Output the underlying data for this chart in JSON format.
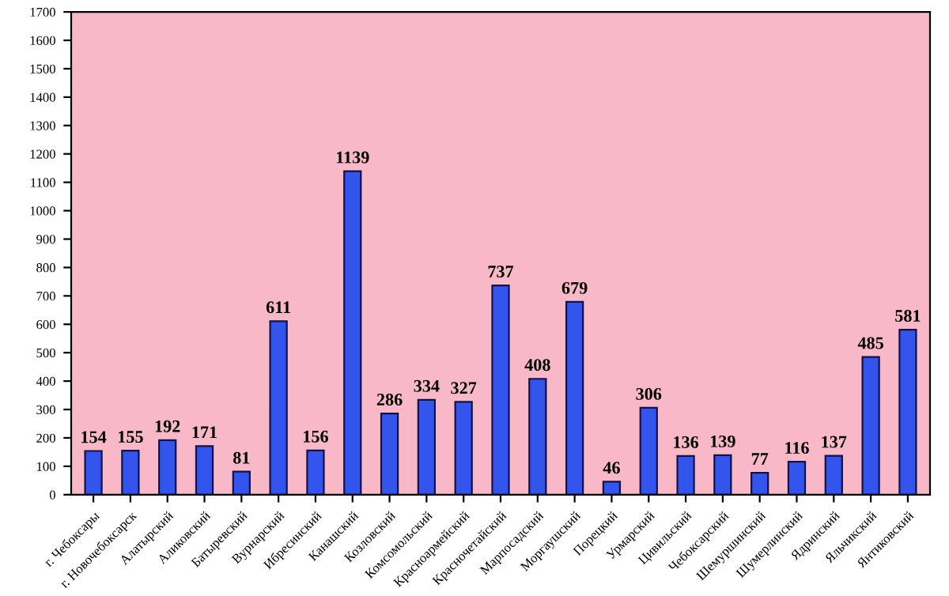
{
  "chart_data": {
    "type": "bar",
    "categories": [
      "г. Чебоксары",
      "г. Новочебоксарск",
      "Алатырский",
      "Аликовский",
      "Батыревский",
      "Вурнарский",
      "Ибресинский",
      "Канашский",
      "Козловский",
      "Комсомольский",
      "Красноармейский",
      "Красночетайский",
      "Марпосадский",
      "Моргаушский",
      "Порецкий",
      "Урмарский",
      "Цивильский",
      "Чебоксарский",
      "Шемуршинский",
      "Шумерлинский",
      "Ядринский",
      "Яльчикский",
      "Янтиковский"
    ],
    "values": [
      154,
      155,
      192,
      171,
      81,
      611,
      156,
      1139,
      286,
      334,
      327,
      737,
      408,
      679,
      46,
      306,
      136,
      139,
      77,
      116,
      137,
      485,
      581
    ],
    "color": "#3355ee",
    "ylim": [
      0,
      1700
    ],
    "yticks": [
      0,
      100,
      200,
      300,
      400,
      500,
      600,
      700,
      800,
      900,
      1000,
      1100,
      1200,
      1300,
      1400,
      1500,
      1600,
      1700
    ],
    "data_labels": true,
    "grid": false,
    "legend": false
  }
}
